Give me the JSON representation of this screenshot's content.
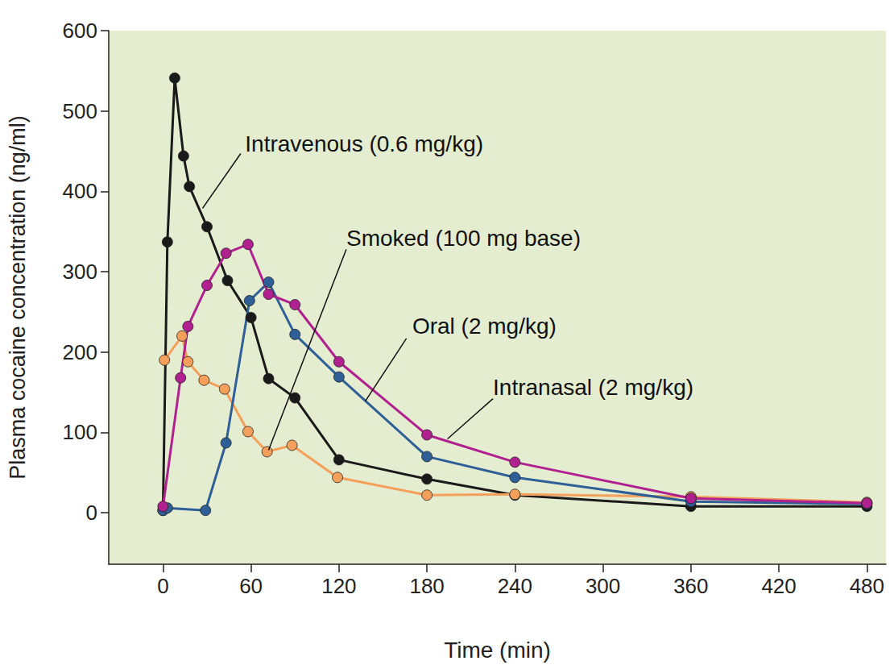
{
  "chart_data": {
    "type": "line",
    "x_label": "Time (min)",
    "y_label": "Plasma cocaine concentration (ng/ml)",
    "xlim": [
      -37,
      493
    ],
    "xticks": [
      0,
      60,
      120,
      180,
      240,
      300,
      360,
      420,
      480
    ],
    "ylim": [
      -64,
      600
    ],
    "yticks": [
      0,
      100,
      200,
      300,
      400,
      500,
      600
    ],
    "grid": false,
    "marker": "circle",
    "line_style": "solid",
    "series": [
      {
        "name": "Intravenous (0.6 mg/kg)",
        "color": "#1a1a1a",
        "x": [
          0,
          3,
          8,
          14,
          18,
          30,
          44,
          60,
          72,
          90,
          120,
          180,
          240,
          360,
          480
        ],
        "values": [
          3,
          337,
          541,
          444,
          406,
          356,
          289,
          243,
          167,
          143,
          66,
          42,
          22,
          8,
          8
        ]
      },
      {
        "name": "Smoked (100 mg base)",
        "color": "#f5a05a",
        "x": [
          1,
          13,
          17,
          28,
          42,
          58,
          71,
          88,
          119,
          180,
          240,
          360,
          480
        ],
        "values": [
          190,
          220,
          188,
          165,
          154,
          101,
          76,
          84,
          44,
          22,
          23,
          20,
          13
        ]
      },
      {
        "name": "Oral (2 mg/kg)",
        "color": "#2e5f96",
        "x": [
          0,
          3,
          29,
          43,
          59,
          72,
          90,
          120,
          180,
          240,
          360,
          480
        ],
        "values": [
          3,
          6,
          3,
          87,
          264,
          287,
          222,
          169,
          70,
          44,
          14,
          11
        ]
      },
      {
        "name": "Intranasal (2 mg/kg)",
        "color": "#b0208f",
        "x": [
          0,
          12,
          17,
          30,
          43,
          58,
          72,
          90,
          120,
          180,
          240,
          360,
          480
        ],
        "values": [
          8,
          168,
          232,
          283,
          323,
          334,
          272,
          259,
          188,
          97,
          63,
          18,
          12
        ]
      }
    ]
  }
}
